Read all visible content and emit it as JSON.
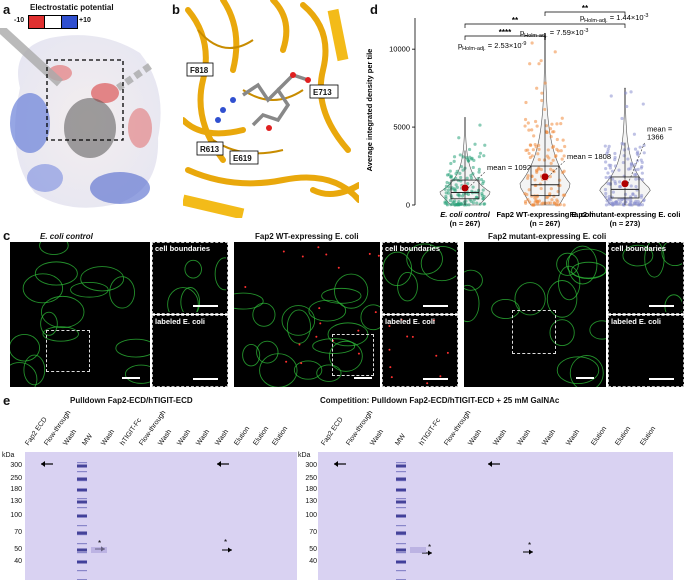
{
  "panels": {
    "a": "a",
    "b": "b",
    "c": "c",
    "d": "d",
    "e": "e"
  },
  "panel_a": {
    "title": "Electrostatic potential",
    "scale_min": "-10",
    "scale_max": "+10",
    "colors": {
      "negative": "#e03030",
      "neutral": "#ffffff",
      "positive": "#3050d0"
    }
  },
  "panel_b": {
    "residues": [
      "F818",
      "E713",
      "R613",
      "E619"
    ]
  },
  "chart_data": {
    "type": "violin-box",
    "ylabel": "Average integrated density per tile",
    "ylim": [
      0,
      12000
    ],
    "yticks": [
      0,
      5000,
      10000
    ],
    "categories": [
      "E. coli control",
      "Fap2 WT-expressing E. coli",
      "Fap2 mutant-expressing E. coli"
    ],
    "counts": [
      "(n = 267)",
      "(n = 267)",
      "(n = 273)"
    ],
    "means": [
      1092,
      1808,
      1366
    ],
    "mean_labels": [
      "mean = 1092",
      "mean = 1808",
      "mean =\n1366"
    ],
    "colors": [
      "#2aa37a",
      "#f08a3c",
      "#8a8fd0"
    ],
    "boxes": [
      {
        "q1": 400,
        "median": 800,
        "q3": 1600,
        "whisker_low": 0,
        "whisker_high": 3500
      },
      {
        "q1": 600,
        "median": 1300,
        "q3": 2500,
        "whisker_low": 0,
        "whisker_high": 5500
      },
      {
        "q1": 450,
        "median": 1000,
        "q3": 1800,
        "whisker_low": 0,
        "whisker_high": 4000
      }
    ],
    "max_values": [
      5600,
      11000,
      7500
    ],
    "comparisons": [
      {
        "pair": [
          0,
          1
        ],
        "stars": "****",
        "p_label": "p",
        "p_sub": "Holm-adj.",
        "p_value": " = 2.53×10",
        "p_exp": "-9"
      },
      {
        "pair": [
          0,
          2
        ],
        "stars": "**",
        "p_label": "p",
        "p_sub": "Holm-adj.",
        "p_value": " = 7.59×10",
        "p_exp": "-3"
      },
      {
        "pair": [
          1,
          2
        ],
        "stars": "**",
        "p_label": "p",
        "p_sub": "Holm-adj.",
        "p_value": " = 1.44×10",
        "p_exp": "-3"
      }
    ]
  },
  "panel_c": {
    "groups": [
      {
        "title": "E. coli control",
        "insets": [
          "cell boundaries",
          "labeled E. coli"
        ]
      },
      {
        "title": "Fap2 WT-expressing E. coli",
        "insets": [
          "cell boundaries",
          "labeled E. coli"
        ]
      },
      {
        "title": "Fap2 mutant-expressing E. coli",
        "insets": [
          "cell boundaries",
          "labeled E. coli"
        ]
      }
    ]
  },
  "panel_e": {
    "gels": [
      {
        "title": "Pulldown Fap2-ECD/hTIGIT-ECD",
        "lanes": [
          "Fap2 ECD",
          "Flow-through",
          "Wash",
          "MW",
          "Wash",
          "hTIGIT-Fc",
          "Flow-through",
          "Wash",
          "Wash",
          "Wash",
          "Wash",
          "Elution",
          "Elution",
          "Elution"
        ]
      },
      {
        "title": "Competition: Pulldown Fap2-ECD/hTIGIT-ECD + 25 mM GalNAc",
        "lanes": [
          "Fap2 ECD",
          "Flow-through",
          "Wash",
          "MW",
          "hTIGIT-Fc",
          "Flow-through",
          "Wash",
          "Wash",
          "Wash",
          "Wash",
          "Wash",
          "Elution",
          "Elution",
          "Elution"
        ]
      }
    ],
    "kda_label": "kDa",
    "kda_ticks": [
      "300",
      "250",
      "180",
      "130",
      "100",
      "70",
      "50",
      "40"
    ],
    "asterisk": "*"
  }
}
